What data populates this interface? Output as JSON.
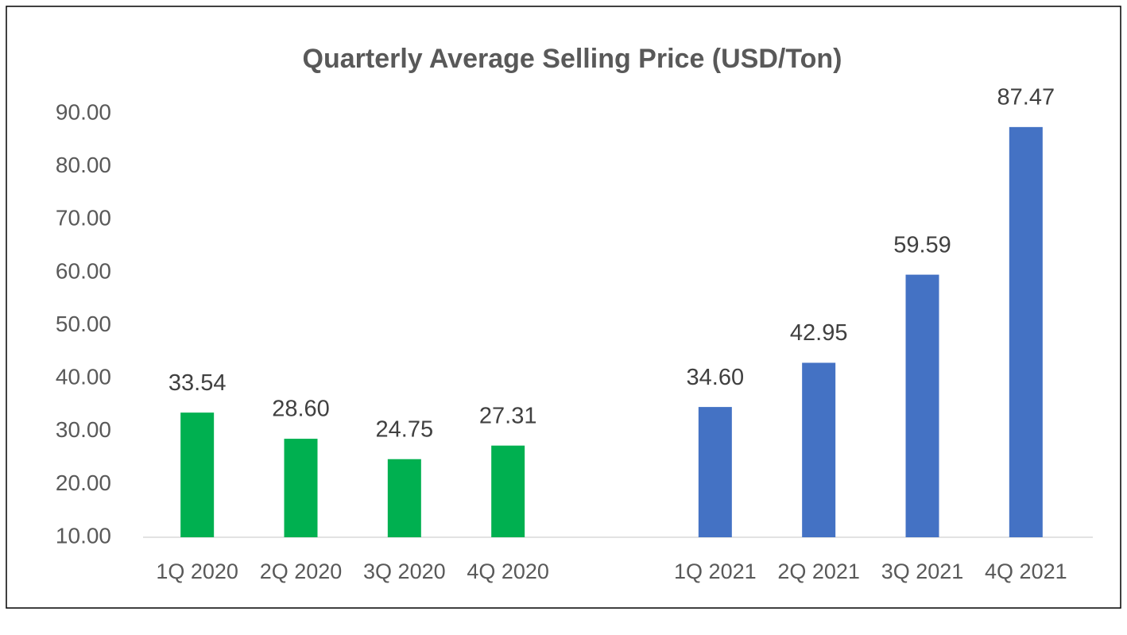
{
  "chart_data": {
    "type": "bar",
    "title": "Quarterly Average Selling Price (USD/Ton)",
    "categories": [
      "1Q 2020",
      "2Q 2020",
      "3Q 2020",
      "4Q 2020",
      null,
      "1Q 2021",
      "2Q 2021",
      "3Q 2021",
      "4Q 2021"
    ],
    "values": [
      33.54,
      28.6,
      24.75,
      27.31,
      null,
      34.6,
      42.95,
      59.59,
      87.47
    ],
    "value_labels": [
      "33.54",
      "28.60",
      "24.75",
      "27.31",
      null,
      "34.60",
      "42.95",
      "59.59",
      "87.47"
    ],
    "colors": [
      "#00b050",
      "#00b050",
      "#00b050",
      "#00b050",
      null,
      "#4472c4",
      "#4472c4",
      "#4472c4",
      "#4472c4"
    ],
    "ylim": [
      10,
      90
    ],
    "yticks": [
      {
        "value": 10,
        "label": "10.00"
      },
      {
        "value": 20,
        "label": "20.00"
      },
      {
        "value": 30,
        "label": "30.00"
      },
      {
        "value": 40,
        "label": "40.00"
      },
      {
        "value": 50,
        "label": "50.00"
      },
      {
        "value": 60,
        "label": "60.00"
      },
      {
        "value": 70,
        "label": "70.00"
      },
      {
        "value": 80,
        "label": "80.00"
      },
      {
        "value": 90,
        "label": "90.00"
      }
    ],
    "grid": false
  }
}
